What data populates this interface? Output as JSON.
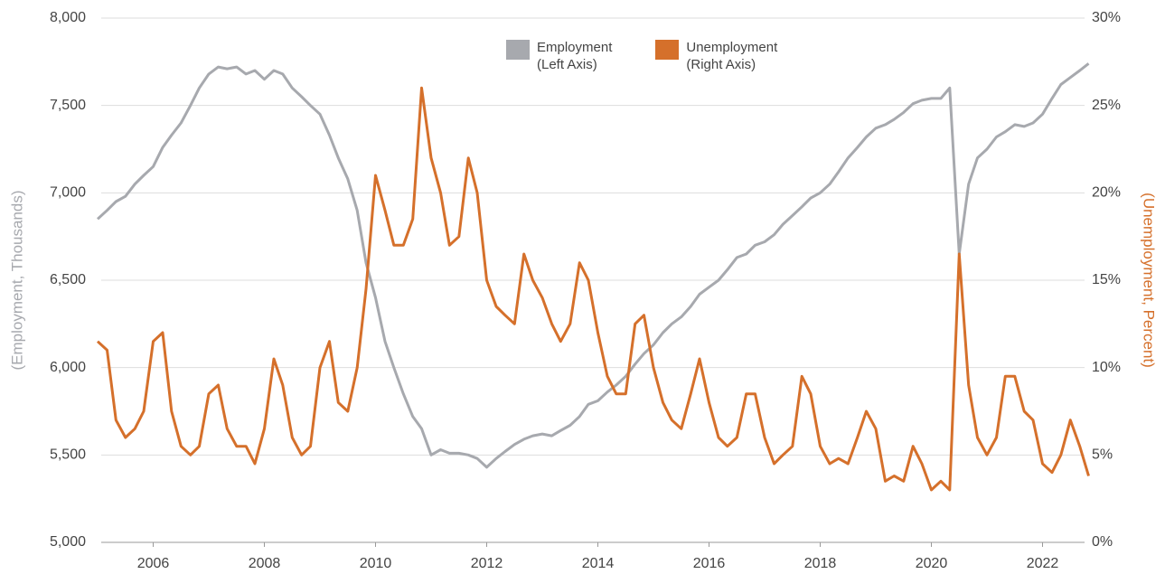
{
  "chart_data": {
    "type": "line",
    "y_label": "(Employment, Thousands)",
    "y2_label": "(Unemployment, Percent)",
    "x": [
      2005,
      2005.17,
      2005.33,
      2005.5,
      2005.67,
      2005.83,
      2006,
      2006.17,
      2006.33,
      2006.5,
      2006.67,
      2006.83,
      2007,
      2007.17,
      2007.33,
      2007.5,
      2007.67,
      2007.83,
      2008,
      2008.17,
      2008.33,
      2008.5,
      2008.67,
      2008.83,
      2009,
      2009.17,
      2009.33,
      2009.5,
      2009.67,
      2009.83,
      2010,
      2010.17,
      2010.33,
      2010.5,
      2010.67,
      2010.83,
      2011,
      2011.17,
      2011.33,
      2011.5,
      2011.67,
      2011.83,
      2012,
      2012.17,
      2012.33,
      2012.5,
      2012.67,
      2012.83,
      2013,
      2013.17,
      2013.33,
      2013.5,
      2013.67,
      2013.83,
      2014,
      2014.17,
      2014.33,
      2014.5,
      2014.67,
      2014.83,
      2015,
      2015.17,
      2015.33,
      2015.5,
      2015.67,
      2015.83,
      2016,
      2016.17,
      2016.33,
      2016.5,
      2016.67,
      2016.83,
      2017,
      2017.17,
      2017.33,
      2017.5,
      2017.67,
      2017.83,
      2018,
      2018.17,
      2018.33,
      2018.5,
      2018.67,
      2018.83,
      2019,
      2019.17,
      2019.33,
      2019.5,
      2019.67,
      2019.83,
      2020,
      2020.17,
      2020.33,
      2020.5,
      2020.67,
      2020.83,
      2021,
      2021.17,
      2021.33,
      2021.5,
      2021.67,
      2021.83,
      2022,
      2022.17,
      2022.33,
      2022.5,
      2022.67,
      2022.83
    ],
    "series": [
      {
        "name": "Employment\n(Left Axis)",
        "color": "#a7a9ae",
        "axis": "y",
        "values": [
          6850,
          6900,
          6950,
          6980,
          7050,
          7100,
          7150,
          7260,
          7330,
          7400,
          7500,
          7600,
          7680,
          7720,
          7710,
          7720,
          7680,
          7700,
          7650,
          7700,
          7680,
          7600,
          7550,
          7500,
          7450,
          7330,
          7200,
          7080,
          6900,
          6600,
          6400,
          6150,
          6000,
          5850,
          5720,
          5650,
          5500,
          5530,
          5510,
          5510,
          5500,
          5480,
          5430,
          5480,
          5520,
          5560,
          5590,
          5610,
          5620,
          5610,
          5640,
          5670,
          5720,
          5790,
          5810,
          5860,
          5900,
          5950,
          6020,
          6080,
          6130,
          6200,
          6250,
          6290,
          6350,
          6420,
          6460,
          6500,
          6560,
          6630,
          6650,
          6700,
          6720,
          6760,
          6820,
          6870,
          6920,
          6970,
          7000,
          7050,
          7120,
          7200,
          7260,
          7320,
          7370,
          7390,
          7420,
          7460,
          7510,
          7530,
          7540,
          7540,
          7600,
          6650,
          7050,
          7200,
          7250,
          7320,
          7350,
          7390,
          7380,
          7400,
          7450,
          7540,
          7620,
          7660,
          7700,
          7740
        ]
      },
      {
        "name": "Unemployment\n(Right Axis)",
        "color": "#d5702b",
        "axis": "y2",
        "values": [
          11.5,
          11,
          7,
          6,
          6.5,
          7.5,
          11.5,
          12,
          7.5,
          5.5,
          5,
          5.5,
          8.5,
          9,
          6.5,
          5.5,
          5.5,
          4.5,
          6.5,
          10.5,
          9,
          6,
          5,
          5.5,
          10,
          11.5,
          8,
          7.5,
          10,
          14.5,
          21,
          19,
          17,
          17,
          18.5,
          26,
          22,
          20,
          17,
          17.5,
          22,
          20,
          15,
          13.5,
          13,
          12.5,
          16.5,
          15,
          14,
          12.5,
          11.5,
          12.5,
          16,
          15,
          12,
          9.5,
          8.5,
          8.5,
          12.5,
          13,
          10,
          8,
          7,
          6.5,
          8.5,
          10.5,
          8,
          6,
          5.5,
          6,
          8.5,
          8.5,
          6,
          4.5,
          5,
          5.5,
          9.5,
          8.5,
          5.5,
          4.5,
          4.8,
          4.5,
          6,
          7.5,
          6.5,
          3.5,
          3.8,
          3.5,
          5.5,
          4.5,
          3,
          3.5,
          3,
          16.5,
          9,
          6,
          5,
          6,
          9.5,
          9.5,
          7.5,
          7,
          4.5,
          4,
          5,
          7,
          5.5,
          3.8
        ]
      }
    ],
    "xlim": [
      2005,
      2023
    ],
    "xticks": [
      2006,
      2008,
      2010,
      2012,
      2014,
      2016,
      2018,
      2020,
      2022
    ],
    "ylim": [
      5000,
      8000
    ],
    "yticks": [
      {
        "value": 5000,
        "label": "5,000"
      },
      {
        "value": 5500,
        "label": "5,500"
      },
      {
        "value": 6000,
        "label": "6,000"
      },
      {
        "value": 6500,
        "label": "6,500"
      },
      {
        "value": 7000,
        "label": "7,000"
      },
      {
        "value": 7500,
        "label": "7,500"
      },
      {
        "value": 8000,
        "label": "8,000"
      }
    ],
    "y2lim": [
      0,
      30
    ],
    "y2ticks": [
      {
        "value": 0,
        "label": "0%"
      },
      {
        "value": 5,
        "label": "5%"
      },
      {
        "value": 10,
        "label": "10%"
      },
      {
        "value": 15,
        "label": "15%"
      },
      {
        "value": 20,
        "label": "20%"
      },
      {
        "value": 25,
        "label": "25%"
      },
      {
        "value": 30,
        "label": "30%"
      }
    ],
    "grid": true
  }
}
